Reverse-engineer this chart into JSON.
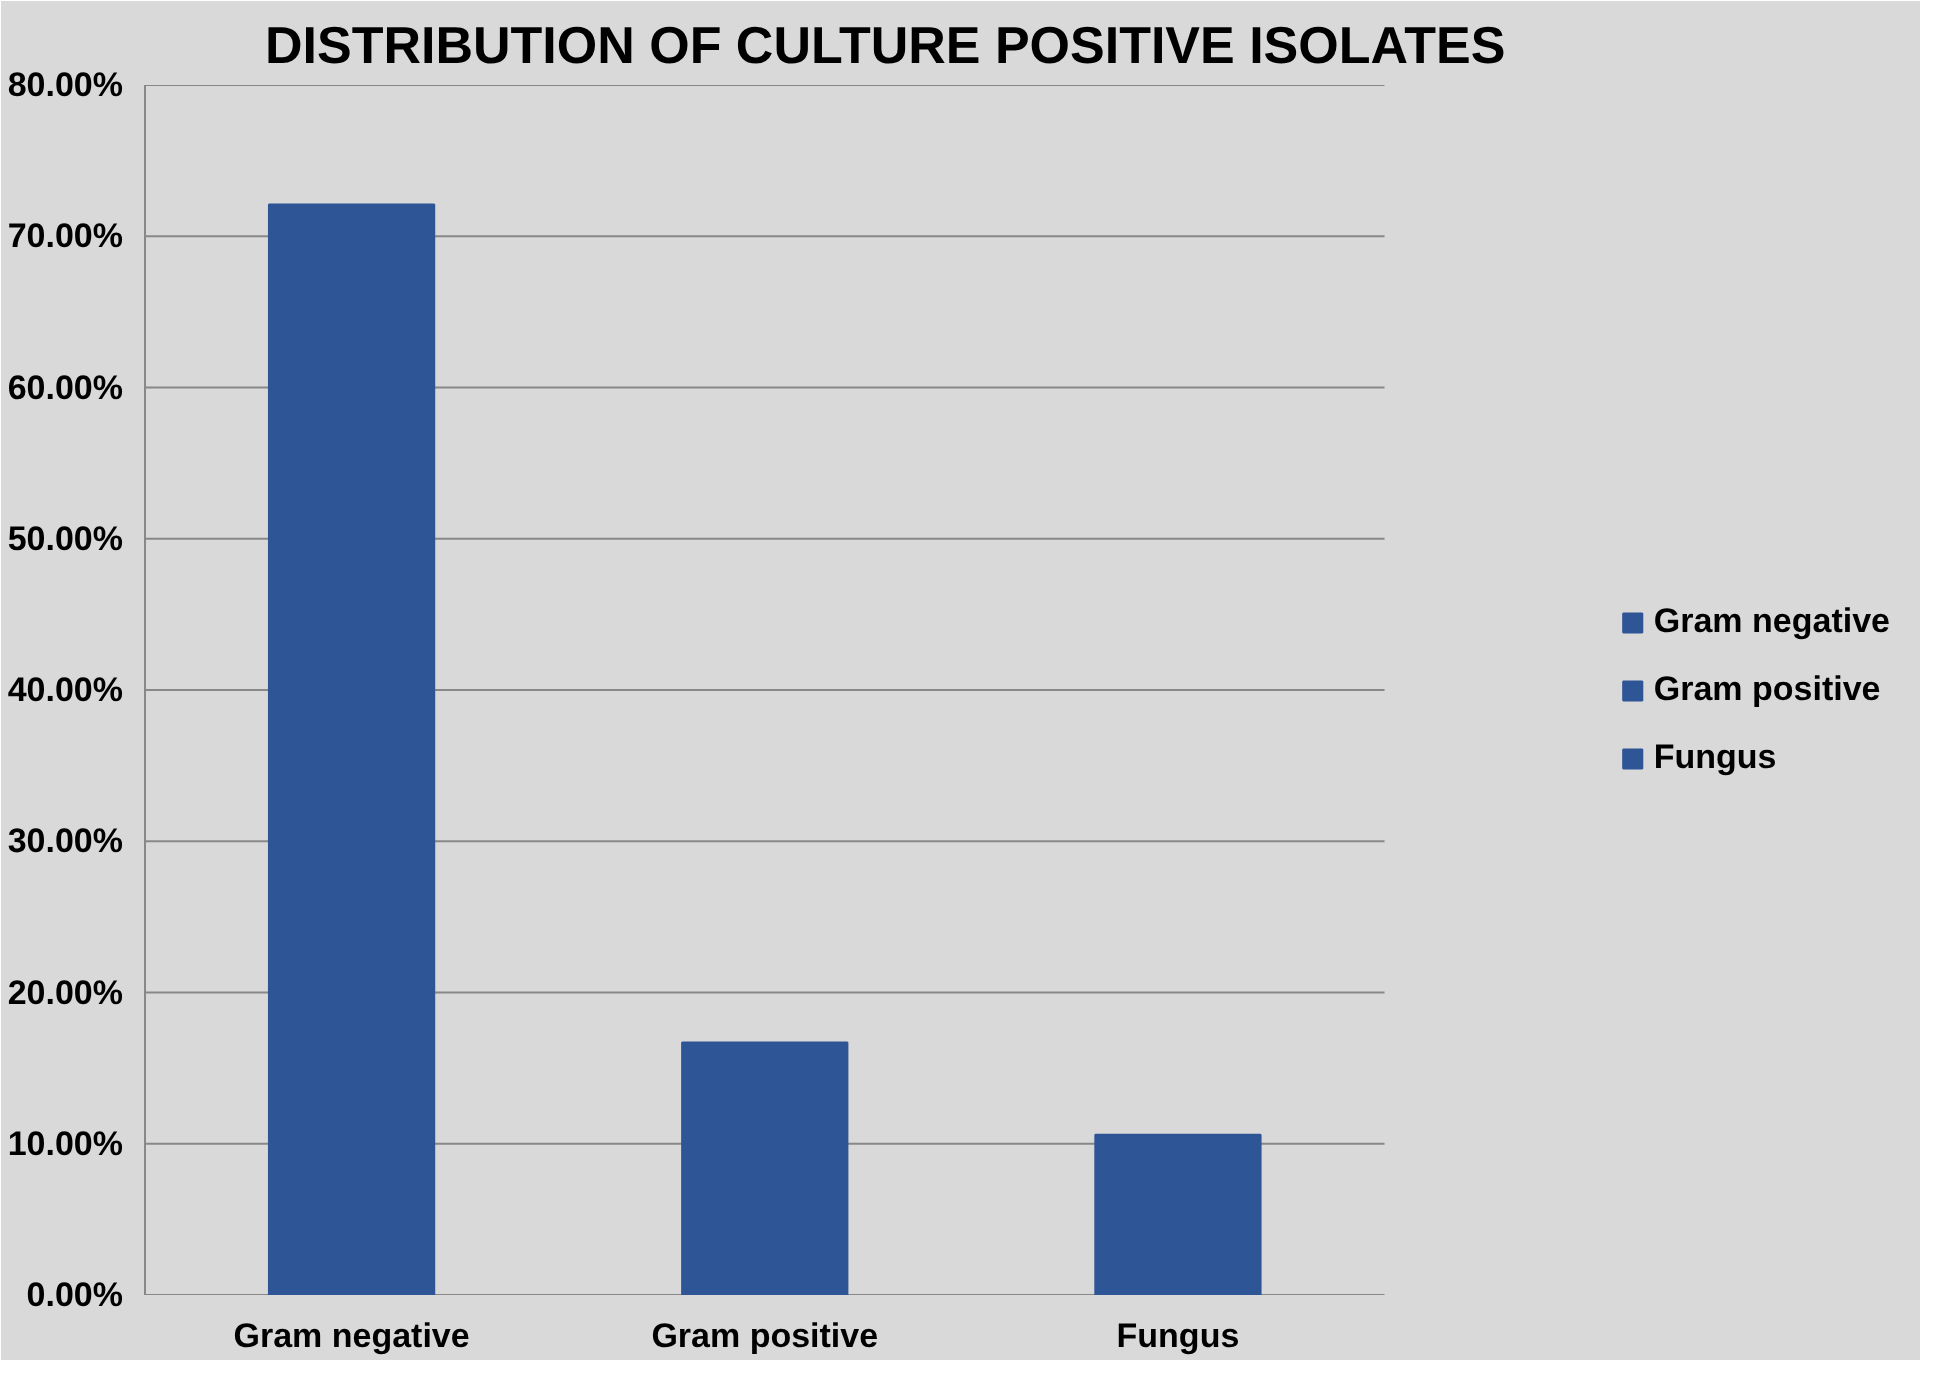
{
  "chart_data": {
    "type": "bar",
    "title": "DISTRIBUTION OF CULTURE POSITIVE ISOLATES",
    "categories": [
      "Gram negative",
      "Gram positive",
      "Fungus"
    ],
    "series": [
      {
        "name": "Gram negative",
        "color": "#2e5596",
        "values": [
          72.1,
          null,
          null
        ]
      },
      {
        "name": "Gram positive",
        "color": "#2e5596",
        "values": [
          null,
          16.7,
          null
        ]
      },
      {
        "name": "Fungus",
        "color": "#2e5596",
        "values": [
          null,
          null,
          10.6
        ]
      }
    ],
    "ylim": [
      0,
      80
    ],
    "yticks": [
      {
        "value": 0,
        "label": "0.00%"
      },
      {
        "value": 10,
        "label": "10.00%"
      },
      {
        "value": 20,
        "label": "20.00%"
      },
      {
        "value": 30,
        "label": "30.00%"
      },
      {
        "value": 40,
        "label": "40.00%"
      },
      {
        "value": 50,
        "label": "50.00%"
      },
      {
        "value": 60,
        "label": "60.00%"
      },
      {
        "value": 70,
        "label": "70.00%"
      },
      {
        "value": 80,
        "label": "80.00%"
      }
    ],
    "grid": "y",
    "legend": "right"
  }
}
